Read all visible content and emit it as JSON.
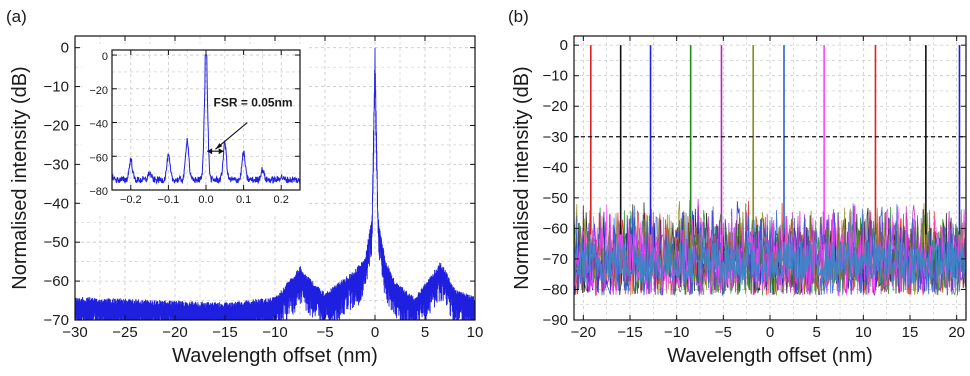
{
  "figure": {
    "panel_a_label": "(a)",
    "panel_b_label": "(b)"
  },
  "colors": {
    "trace_a": "#1f1fe0",
    "palette_b": [
      "#e0201e",
      "#111111",
      "#1f1fe0",
      "#1c8c1c",
      "#c020c0",
      "#8a8a1a",
      "#2a5fd0",
      "#ff40ff"
    ],
    "threshold_line": "#111111",
    "grid": "#c8c8c8"
  },
  "chart_data": [
    {
      "id": "a",
      "type": "line",
      "xlabel": "Wavelength offset (nm)",
      "ylabel": "Normalised intensity (dB)",
      "xlim": [
        -30,
        10
      ],
      "ylim": [
        -70,
        3
      ],
      "xticks": [
        -30,
        -25,
        -20,
        -15,
        -10,
        -5,
        0,
        5,
        10
      ],
      "yticks": [
        0,
        -10,
        -20,
        -30,
        -40,
        -50,
        -60,
        -70
      ],
      "grid": true,
      "series": [
        {
          "x": [
            -30,
            -25,
            -20,
            -15,
            -10,
            -8,
            -7.5,
            -7,
            -5,
            -2,
            -1,
            -0.3,
            0,
            0.3,
            1,
            2,
            4,
            6,
            6.5,
            7,
            8,
            10
          ],
          "y": [
            -64,
            -64.5,
            -65,
            -65.5,
            -64,
            -58,
            -56,
            -58,
            -63,
            -57,
            -54,
            -43,
            0,
            -43,
            -54,
            -60,
            -64,
            -57,
            -55,
            -57,
            -62,
            -64
          ]
        }
      ],
      "inset": {
        "xlim": [
          -0.25,
          0.25
        ],
        "ylim": [
          -80,
          3
        ],
        "xticks": [
          -0.2,
          -0.1,
          0.0,
          0.1,
          0.2
        ],
        "yticks": [
          0,
          -20,
          -40,
          -60,
          -80
        ],
        "annotation": "FSR = 0.05nm",
        "series": [
          {
            "x": [
              -0.25,
              -0.2,
              -0.15,
              -0.1,
              -0.05,
              0.0,
              0.05,
              0.1,
              0.15,
              0.2,
              0.25
            ],
            "y": [
              -72,
              -62,
              -70,
              -60,
              -50,
              0,
              -52,
              -58,
              -68,
              -72,
              -75
            ]
          }
        ]
      }
    },
    {
      "id": "b",
      "type": "line",
      "xlabel": "Wavelength offset (nm)",
      "ylabel": "Normalised intensity (dB)",
      "xlim": [
        -21,
        21
      ],
      "ylim": [
        -90,
        3
      ],
      "xticks": [
        -20,
        -15,
        -10,
        -5,
        0,
        5,
        10,
        15,
        20
      ],
      "yticks": [
        0,
        -10,
        -20,
        -30,
        -40,
        -50,
        -60,
        -70,
        -80,
        -90
      ],
      "grid": true,
      "threshold_db": -30,
      "noise_floor_db": [
        -90,
        -50
      ],
      "peaks": [
        {
          "x": -19.2,
          "y": 0
        },
        {
          "x": -16.0,
          "y": 0
        },
        {
          "x": -12.8,
          "y": 0
        },
        {
          "x": -8.5,
          "y": 0
        },
        {
          "x": -5.2,
          "y": 0
        },
        {
          "x": -1.8,
          "y": 0
        },
        {
          "x": 1.5,
          "y": 0
        },
        {
          "x": 5.8,
          "y": 0
        },
        {
          "x": 11.3,
          "y": 0
        },
        {
          "x": 16.7,
          "y": 0
        },
        {
          "x": 20.3,
          "y": 0
        }
      ]
    }
  ]
}
